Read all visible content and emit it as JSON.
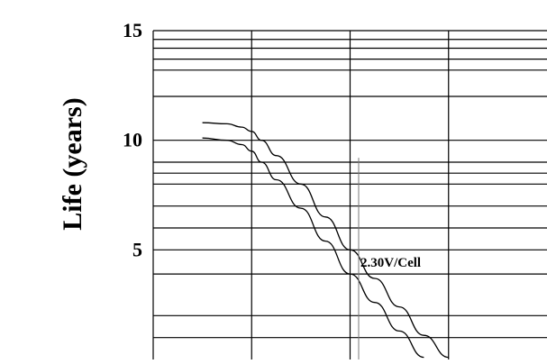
{
  "chart_data": {
    "type": "line",
    "ylabel": "Life (years)",
    "xlabel": "",
    "ylim": [
      0,
      15
    ],
    "yticks": [
      15,
      10,
      5
    ],
    "grid": true,
    "x_divisions": 4,
    "y_gridlines": [
      1,
      2,
      3.9,
      5,
      6,
      7,
      8,
      8.5,
      9,
      10,
      12,
      13.2,
      13.7,
      14.2,
      14.6
    ],
    "series": [
      {
        "x": [
          0.5,
          0.75,
          0.9,
          1.0,
          1.1,
          1.25,
          1.5,
          1.75,
          2.0,
          2.25,
          2.5,
          2.75,
          3.0
        ],
        "upper": [
          10.8,
          10.75,
          10.6,
          10.4,
          10.0,
          9.3,
          8.0,
          6.5,
          5.0,
          3.7,
          2.4,
          1.1,
          0.1
        ],
        "lower": [
          10.1,
          10.0,
          9.8,
          9.5,
          9.0,
          8.2,
          6.9,
          5.4,
          3.9,
          2.6,
          1.3,
          0.1,
          null
        ]
      }
    ],
    "annotations": [
      {
        "text": "2.30V/Cell"
      }
    ]
  }
}
